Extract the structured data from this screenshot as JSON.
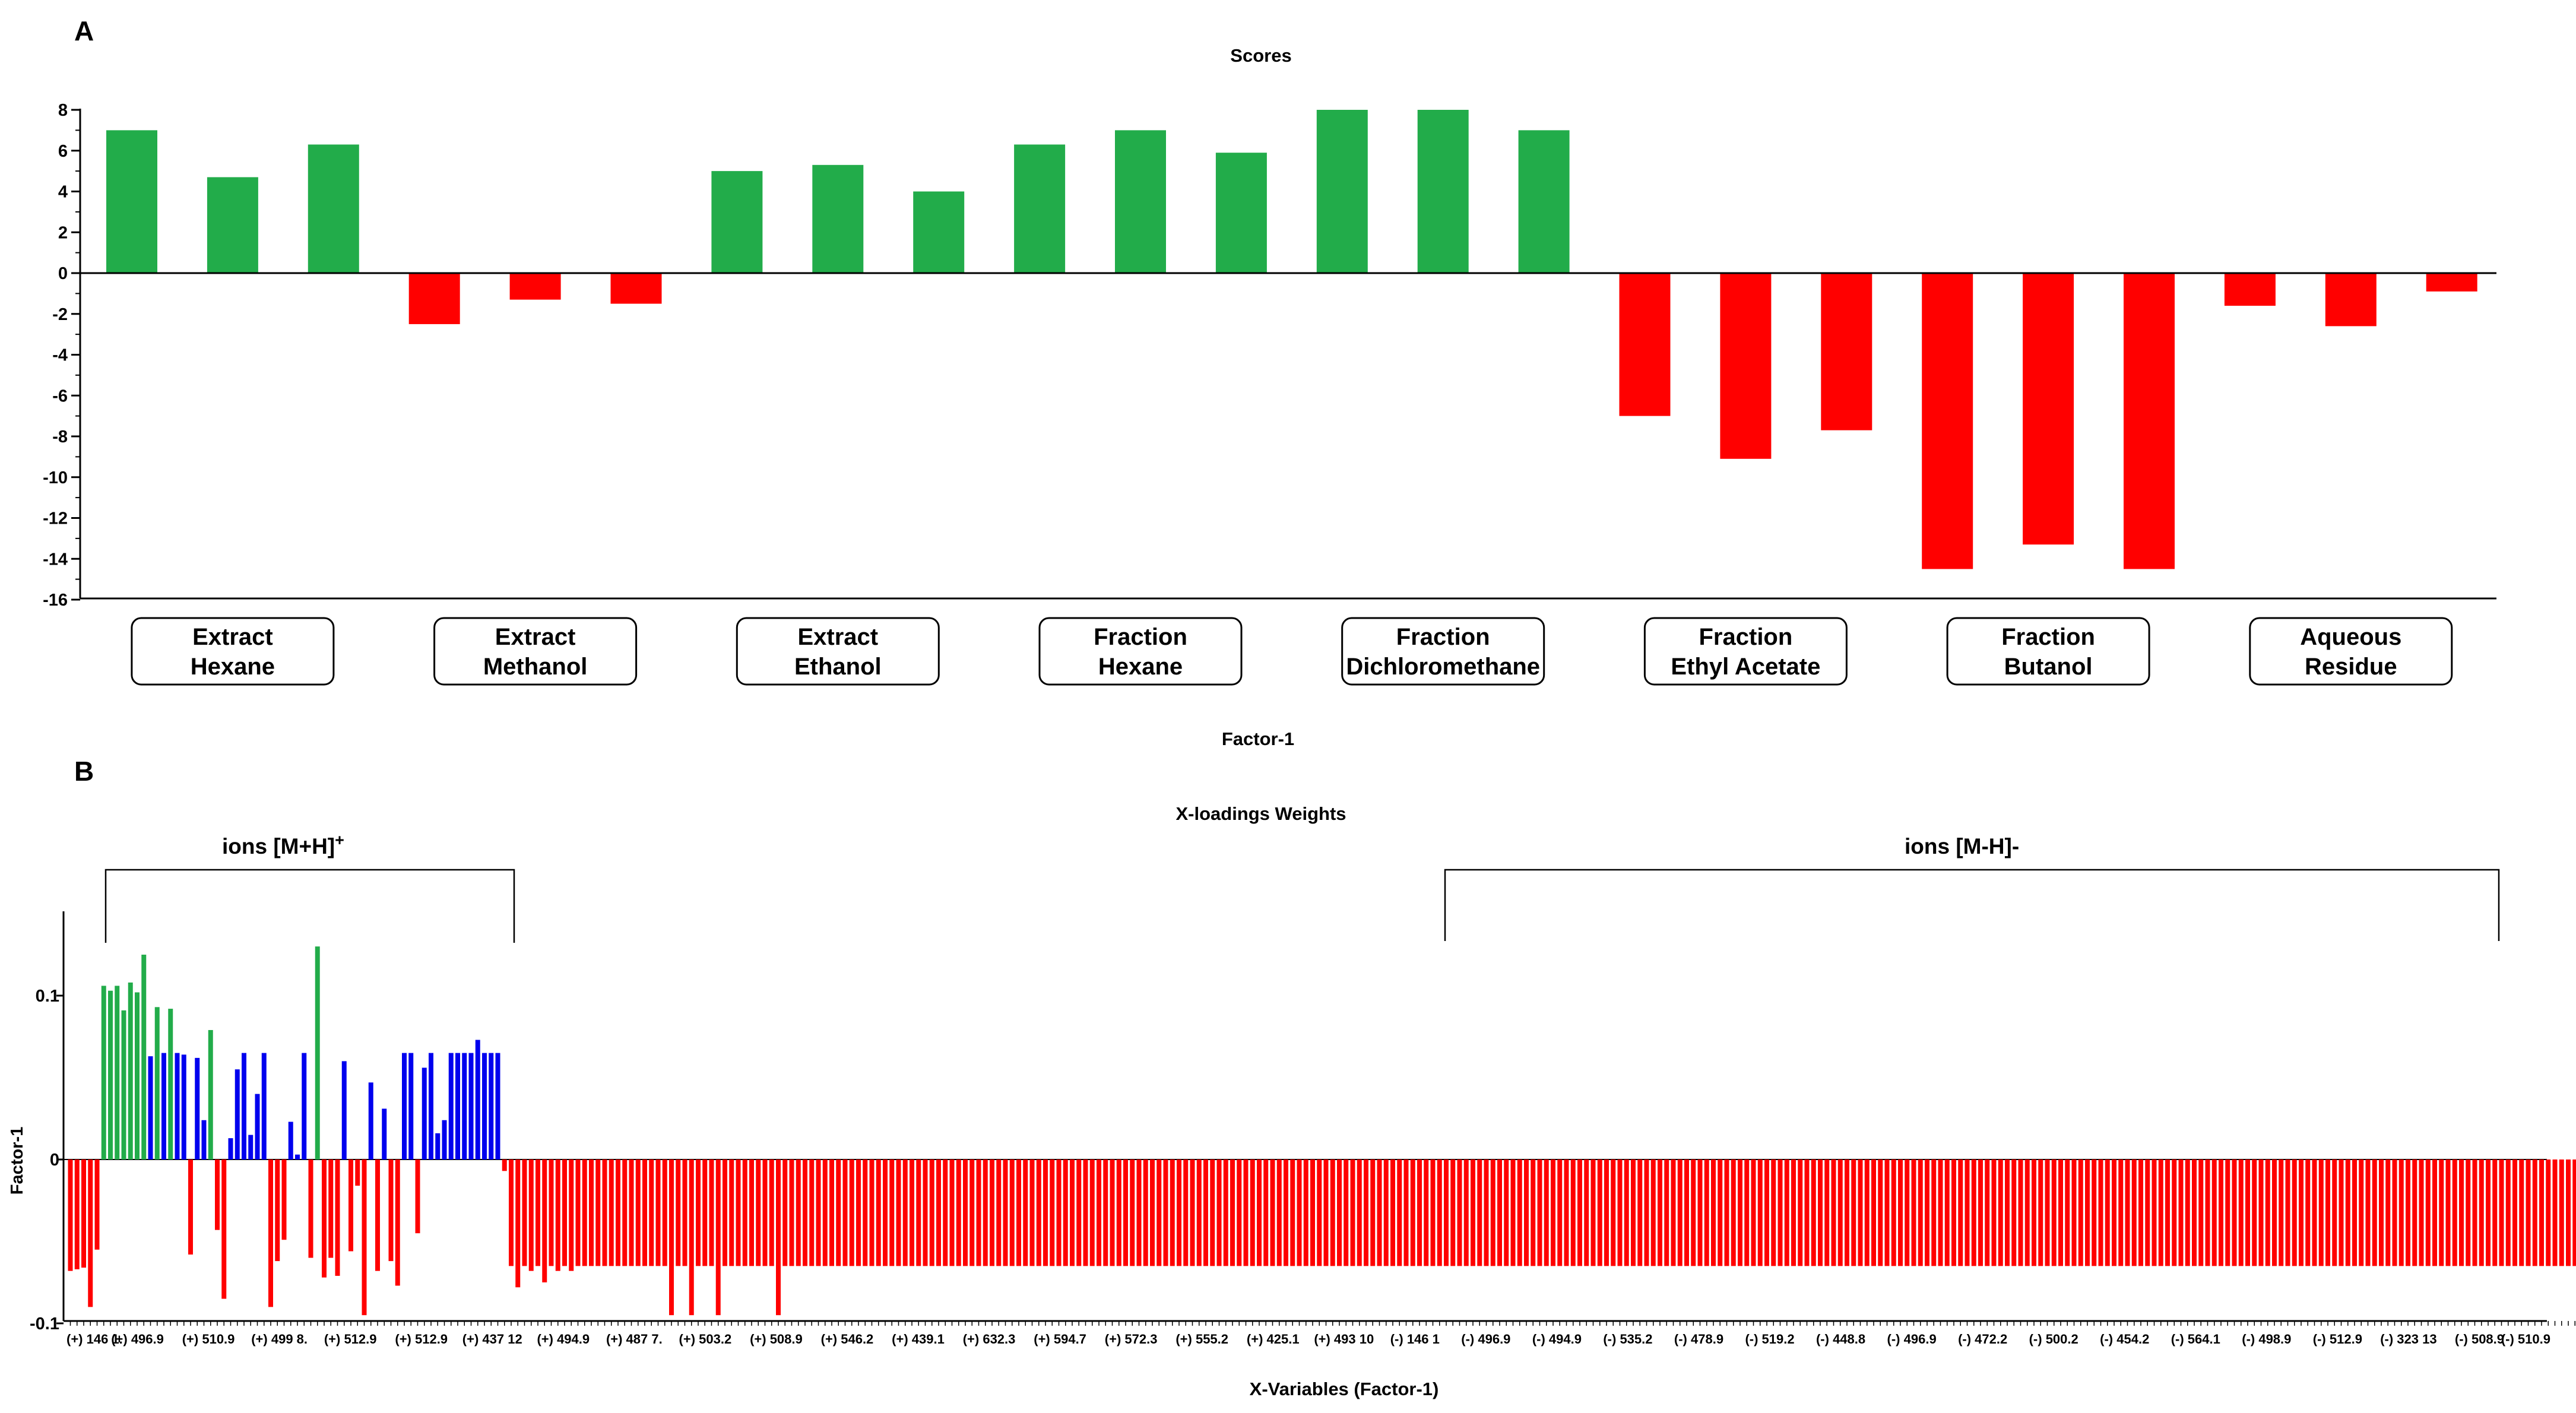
{
  "chart_data": [
    {
      "panel": "A",
      "type": "bar",
      "title": "Scores",
      "xlabel": "Factor-1",
      "ylabel": "",
      "ylim": [
        -16,
        8
      ],
      "yticks": [
        "8",
        "6",
        "4",
        "2",
        "0",
        "-2",
        "-4",
        "-6",
        "-8",
        "-10",
        "-12",
        "-14",
        "-16"
      ],
      "colors": {
        "positive": "#22ac4a",
        "negative": "#ff0000"
      },
      "values": [
        7.0,
        4.7,
        6.3,
        -2.5,
        -1.3,
        -1.5,
        5.0,
        5.3,
        4.0,
        6.3,
        7.0,
        5.9,
        8.0,
        8.0,
        7.0,
        -7.0,
        -9.1,
        -7.7,
        -14.5,
        -13.3,
        -14.5,
        -1.6,
        -2.6,
        -0.9
      ],
      "groups": [
        {
          "line1": "Extract",
          "line2": "Hexane",
          "bars": 3
        },
        {
          "line1": "Extract",
          "line2": "Methanol",
          "bars": 3
        },
        {
          "line1": "Extract",
          "line2": "Ethanol",
          "bars": 3
        },
        {
          "line1": "Fraction",
          "line2": "Hexane",
          "bars": 3
        },
        {
          "line1": "Fraction",
          "line2": "Dichloromethane",
          "bars": 3
        },
        {
          "line1": "Fraction",
          "line2": "Ethyl Acetate",
          "bars": 3
        },
        {
          "line1": "Fraction",
          "line2": "Butanol",
          "bars": 3
        },
        {
          "line1": "Aqueous",
          "line2": "Residue",
          "bars": 3
        }
      ]
    },
    {
      "panel": "B",
      "type": "bar",
      "title": "X-loadings Weights",
      "xlabel": "X-Variables (Factor-1)",
      "ylabel": "Factor-1",
      "ylim": [
        -0.1,
        0.15
      ],
      "yticks": [
        {
          "label": "0.1",
          "value": 0.1
        },
        {
          "label": "0",
          "value": 0.0
        },
        {
          "label": "-0.1",
          "value": -0.1
        }
      ],
      "brackets": [
        {
          "label": "ions [M+H]",
          "superscript": "+",
          "from_index": 0,
          "to_index": 60
        },
        {
          "label": "ions [M-H]-",
          "superscript": "",
          "from_index": 209,
          "to_index": 371
        }
      ],
      "colors": {
        "G": "#22ac4a",
        "B": "#0000ee",
        "R": "#ff0000"
      },
      "values": [
        -0.068,
        -0.067,
        -0.066,
        -0.09,
        -0.055,
        0.106,
        0.103,
        0.106,
        0.091,
        0.108,
        0.102,
        0.125,
        0.063,
        0.093,
        0.065,
        0.092,
        0.065,
        0.064,
        -0.058,
        0.062,
        0.024,
        0.079,
        -0.043,
        -0.085,
        0.013,
        0.055,
        0.065,
        0.015,
        0.04,
        0.065,
        -0.09,
        -0.062,
        -0.049,
        0.023,
        0.003,
        0.065,
        -0.06,
        0.13,
        -0.072,
        -0.06,
        -0.071,
        0.06,
        -0.056,
        -0.016,
        -0.095,
        0.047,
        -0.068,
        0.031,
        -0.062,
        -0.077,
        0.065,
        0.065,
        -0.045,
        0.056,
        0.065,
        0.016,
        0.024,
        0.065,
        0.065,
        0.065,
        0.065,
        0.073,
        0.065,
        0.065,
        0.065,
        -0.007,
        -0.065,
        -0.078,
        -0.065,
        -0.068,
        -0.065,
        -0.075,
        -0.065,
        -0.068,
        -0.065,
        -0.068,
        -0.065,
        -0.065,
        -0.065,
        -0.065,
        -0.065,
        -0.065,
        -0.065,
        -0.065,
        -0.065,
        -0.065,
        -0.065,
        -0.065,
        -0.065,
        -0.065,
        -0.095,
        -0.065,
        -0.065,
        -0.095,
        -0.065,
        -0.065,
        -0.065,
        -0.095,
        -0.065,
        -0.065,
        -0.065,
        -0.065,
        -0.065,
        -0.065,
        -0.065,
        -0.065,
        -0.095,
        -0.065,
        -0.065,
        -0.065,
        -0.065,
        -0.065,
        -0.065,
        -0.065,
        -0.065,
        -0.065,
        -0.065,
        -0.065,
        -0.065,
        -0.065,
        -0.065,
        -0.065,
        -0.065,
        -0.065,
        -0.065,
        -0.065,
        -0.065,
        -0.065,
        -0.065,
        -0.065,
        -0.065,
        -0.065,
        -0.065,
        -0.065,
        -0.065,
        -0.065,
        -0.065,
        -0.065,
        -0.065,
        -0.065,
        -0.065,
        -0.065,
        -0.065,
        -0.065,
        -0.065,
        -0.065,
        -0.065,
        -0.065,
        -0.065,
        -0.065,
        -0.065,
        -0.065,
        -0.065,
        -0.065,
        -0.065,
        -0.065,
        -0.065,
        -0.065,
        -0.065,
        -0.065,
        -0.065,
        -0.065,
        -0.065,
        -0.065,
        -0.065,
        -0.065,
        -0.065,
        -0.065,
        -0.065,
        -0.065,
        -0.065,
        -0.065,
        -0.065,
        -0.065,
        -0.065,
        -0.065,
        -0.065,
        -0.065,
        -0.065,
        -0.065,
        -0.065,
        -0.065,
        -0.065,
        -0.065,
        -0.065,
        -0.065,
        -0.065,
        -0.065,
        -0.065,
        -0.065,
        -0.065,
        -0.065,
        -0.065,
        -0.065,
        -0.065,
        -0.065,
        -0.065,
        -0.065,
        -0.065,
        -0.065,
        -0.065,
        -0.065,
        -0.065,
        -0.065,
        -0.065,
        -0.065,
        -0.065,
        -0.065,
        -0.065,
        -0.065,
        -0.065,
        -0.065,
        -0.065,
        -0.065,
        -0.065,
        -0.065,
        -0.065,
        -0.065,
        -0.065,
        -0.065,
        -0.065,
        -0.065,
        -0.065,
        -0.065,
        -0.065,
        -0.065,
        -0.065,
        -0.065,
        -0.065,
        -0.065,
        -0.065,
        -0.065,
        -0.065,
        -0.065,
        -0.065,
        -0.065,
        -0.065,
        -0.065,
        -0.065,
        -0.065,
        -0.065,
        -0.065,
        -0.065,
        -0.065,
        -0.065,
        -0.065,
        -0.065,
        -0.065,
        -0.065,
        -0.065,
        -0.065,
        -0.065,
        -0.065,
        -0.065,
        -0.065,
        -0.065,
        -0.065,
        -0.065,
        -0.065,
        -0.065,
        -0.065,
        -0.065,
        -0.065,
        -0.065,
        -0.065,
        -0.065,
        -0.065,
        -0.065,
        -0.065,
        -0.065,
        -0.065,
        -0.065,
        -0.065,
        -0.065,
        -0.065,
        -0.065,
        -0.065,
        -0.065,
        -0.065,
        -0.065,
        -0.065,
        -0.065,
        -0.065,
        -0.065,
        -0.065,
        -0.065,
        -0.065,
        -0.065,
        -0.065,
        -0.065,
        -0.065,
        -0.065,
        -0.065,
        -0.065,
        -0.065,
        -0.065,
        -0.065,
        -0.065,
        -0.065,
        -0.065,
        -0.065,
        -0.065,
        -0.065,
        -0.065,
        -0.065,
        -0.065,
        -0.065,
        -0.065,
        -0.065,
        -0.065,
        -0.065,
        -0.065,
        -0.065,
        -0.065,
        -0.065,
        -0.065,
        -0.065,
        -0.065,
        -0.065,
        -0.065,
        -0.065,
        -0.065,
        -0.065,
        -0.065,
        -0.065,
        -0.065,
        -0.065,
        -0.065,
        -0.065,
        -0.065,
        -0.065,
        -0.065,
        -0.065,
        -0.065,
        -0.065,
        -0.065,
        -0.065,
        -0.065,
        -0.065,
        -0.065,
        -0.065,
        -0.065,
        -0.065,
        -0.065,
        -0.065,
        -0.065,
        -0.065,
        -0.065,
        -0.065,
        -0.065,
        -0.065,
        -0.065,
        -0.065,
        -0.065,
        -0.065,
        -0.065,
        -0.065,
        -0.065,
        -0.065,
        -0.065,
        -0.065,
        -0.065,
        -0.065,
        -0.065,
        -0.065,
        -0.065,
        -0.065,
        -0.065,
        -0.065,
        -0.065,
        -0.065,
        -0.065,
        -0.065,
        -0.065,
        -0.065,
        -0.065
      ],
      "bar_colors": "RRRRRGGGGGGGBGBGBBRBBGRRBBBBBBRRRBBBRGRRRBRRRBRBRRBBRBBBBBBBBBBBBRRRRRRRRRRRRRRRRRRRRRRRRRRRRRRRRRRRRRRRRRRRRRRRRRRRRRRRRRRRRRRRRRRRRRRRRRRRRRRRRRRRRRRRRRRRRRRRRRRRRRRRRRRRRRRRRRRRRRRRRRRRRRRRRRRRRRRRRRRRRRRRRRRRRRRRRRRRRRRRRRRRRRRRRRRRRRRRRRRRRRRRRRRRRRRRRRRRRRRRRRRRRRRRRRRRRRRRRRRRRRRRRRRRRRRRRRRRRRRRRRRRRRRRRRRRRRRRRRRRRRRRRRRRRRRRRRRRRRRRRRRRRRRRRRRRRRRRRRRRRRRRRRRRRRRRRRRRRRRRRRRRRRRRRRRRRR",
      "tick_labels": [
        "(+) 146 1.",
        "(+) 496.9",
        "(+) 510.9",
        "(+) 499 8.",
        "(+) 512.9",
        "(+) 512.9",
        "(+) 437 12",
        "(+) 494.9",
        "(+) 487 7.",
        "(+) 503.2",
        "(+) 508.9",
        "(+) 546.2",
        "(+) 439.1",
        "(+) 632.3",
        "(+) 594.7",
        "(+) 572.3",
        "(+) 555.2",
        "(+) 425.1",
        "(+) 493 10",
        "(-) 146 1",
        "(-) 496.9",
        "(-) 494.9",
        "(-) 535.2",
        "(-) 478.9",
        "(-) 519.2",
        "(-) 448.8",
        "(-) 496.9",
        "(-) 472.2",
        "(-) 500.2",
        "(-) 454.2",
        "(-) 564.1",
        "(-) 498.9",
        "(-) 512.9",
        "(-) 323 13",
        "(-) 508.9",
        "(-) 510.9"
      ]
    }
  ]
}
